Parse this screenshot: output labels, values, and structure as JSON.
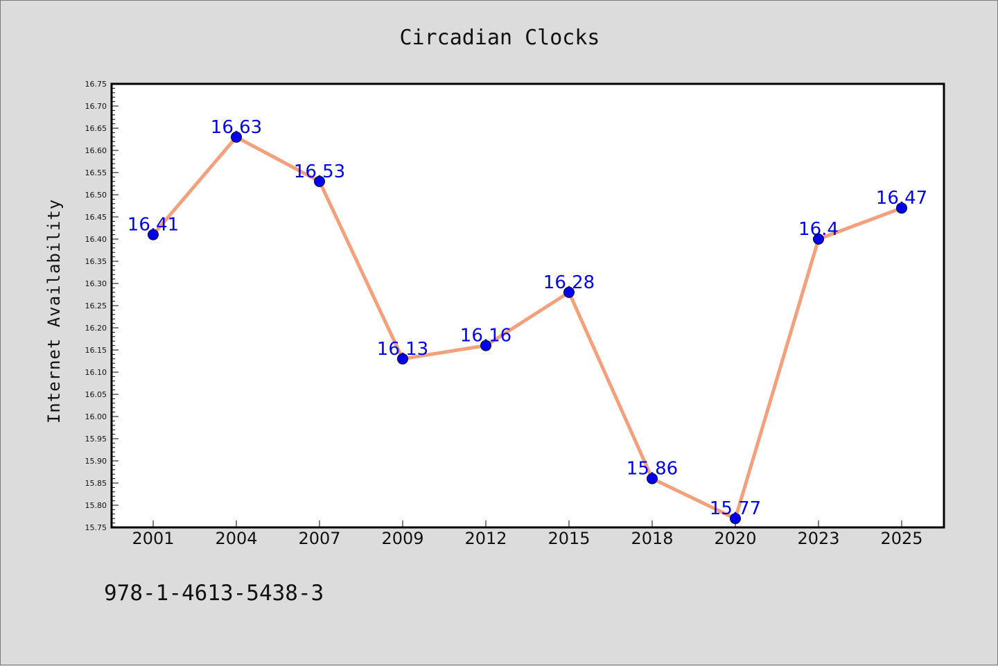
{
  "chart_data": {
    "type": "line",
    "title": "Circadian Clocks",
    "ylabel": "Internet Availability",
    "xlabel": "",
    "categories": [
      "2001",
      "2004",
      "2007",
      "2009",
      "2012",
      "2015",
      "2018",
      "2020",
      "2023",
      "2025"
    ],
    "series": [
      {
        "values": [
          16.41,
          16.63,
          16.53,
          16.13,
          16.16,
          16.28,
          15.86,
          15.77,
          16.4,
          16.47
        ]
      }
    ],
    "data_labels": [
      "16.41",
      "16.63",
      "16.53",
      "16.13",
      "16.16",
      "16.28",
      "15.86",
      "15.77",
      "16.4",
      "16.47"
    ],
    "ylim": [
      15.75,
      16.75
    ],
    "yticks": [
      "15.75",
      "15.80",
      "15.85",
      "15.90",
      "15.95",
      "16.00",
      "16.05",
      "16.10",
      "16.15",
      "16.20",
      "16.25",
      "16.30",
      "16.35",
      "16.40",
      "16.45",
      "16.50",
      "16.55",
      "16.60",
      "16.65",
      "16.70",
      "16.75"
    ],
    "grid": false,
    "colors": {
      "line": "#f4a07c",
      "marker": "#0000ee",
      "label": "#0000ee",
      "background": "#dcdcdc",
      "plot_background": "#ffffff"
    }
  },
  "footer": {
    "isbn": "978-1-4613-5438-3"
  }
}
